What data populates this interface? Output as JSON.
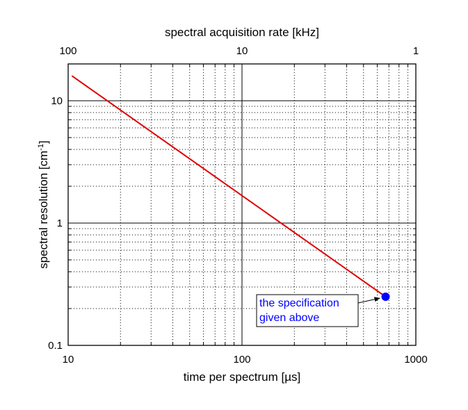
{
  "chart_data": {
    "type": "line",
    "x_scale": "log",
    "y_scale": "log",
    "xlabel": "time per spectrum [µs]",
    "x2label": "spectral acquisition rate [kHz]",
    "ylabel": "spectral resolution [cm",
    "ylabel_sup": "-1",
    "ylabel_end": "]",
    "xlim": [
      10,
      1000
    ],
    "ylim": [
      0.1,
      20
    ],
    "x2lim": [
      100,
      1
    ],
    "x_ticks": [
      {
        "value": 10,
        "label": "10"
      },
      {
        "value": 100,
        "label": "100"
      },
      {
        "value": 1000,
        "label": "1000"
      }
    ],
    "x2_ticks": [
      {
        "value": 100,
        "label": "100"
      },
      {
        "value": 10,
        "label": "10"
      },
      {
        "value": 1,
        "label": "1"
      }
    ],
    "y_ticks": [
      {
        "value": 0.1,
        "label": "0.1"
      },
      {
        "value": 1,
        "label": "1"
      },
      {
        "value": 10,
        "label": "10"
      }
    ],
    "grid": true,
    "series": [
      {
        "color": "#e00000",
        "x": [
          10.5,
          670
        ],
        "y": [
          16,
          0.25
        ]
      }
    ],
    "highlight_point": {
      "x": 670,
      "y": 0.25,
      "color": "#0000ff"
    },
    "annotation": {
      "lines": [
        "the specification",
        "given above"
      ],
      "color": "#0000ff",
      "target": {
        "x": 670,
        "y": 0.25
      }
    }
  }
}
